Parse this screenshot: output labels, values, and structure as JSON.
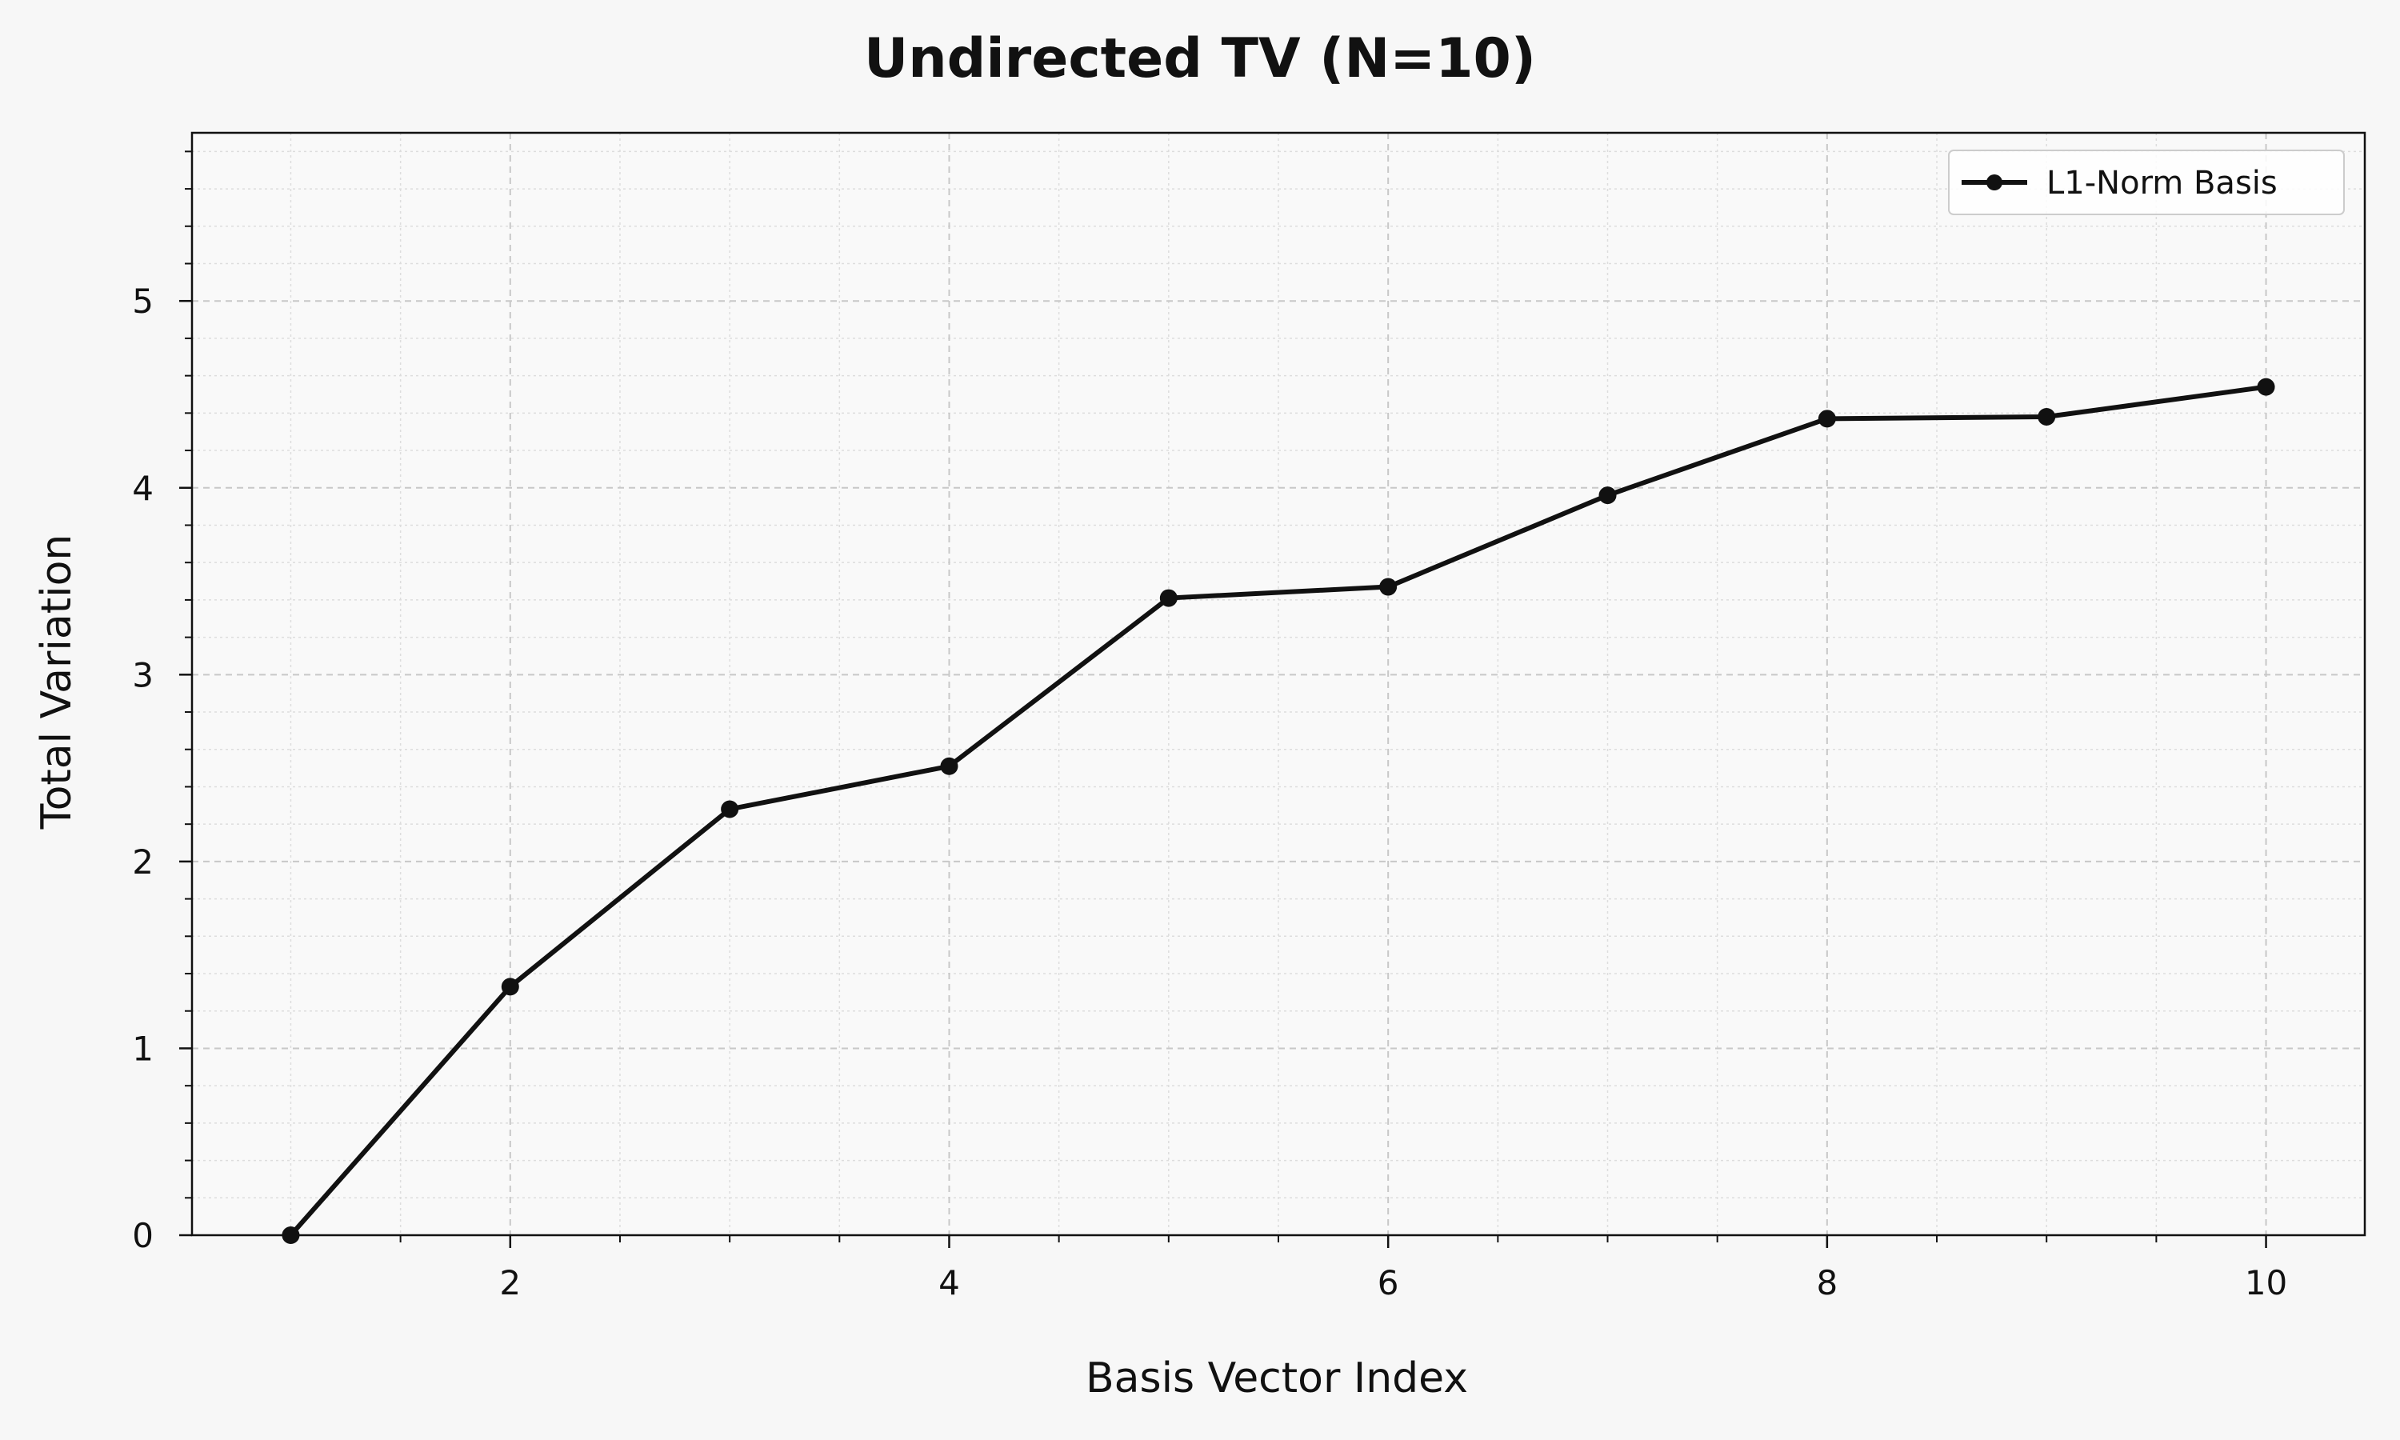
{
  "chart_data": {
    "type": "line",
    "title": "Undirected TV (N=10)",
    "xlabel": "Basis Vector Index",
    "ylabel": "Total Variation",
    "xlim": [
      0.55,
      10.45
    ],
    "ylim": [
      0,
      5.9
    ],
    "x_ticks": [
      2,
      4,
      6,
      8,
      10
    ],
    "x_minor_step": 0.5,
    "y_ticks": [
      0,
      1,
      2,
      3,
      4,
      5
    ],
    "y_minor_step": 0.2,
    "grid": true,
    "legend_position": "top-right",
    "series": [
      {
        "name": "L1-Norm Basis",
        "color": "#111111",
        "marker": "circle",
        "x": [
          1,
          2,
          3,
          4,
          5,
          6,
          7,
          8,
          9,
          10
        ],
        "y": [
          0.0,
          1.33,
          2.28,
          2.51,
          3.41,
          3.47,
          3.96,
          4.37,
          4.38,
          4.54
        ]
      }
    ]
  }
}
